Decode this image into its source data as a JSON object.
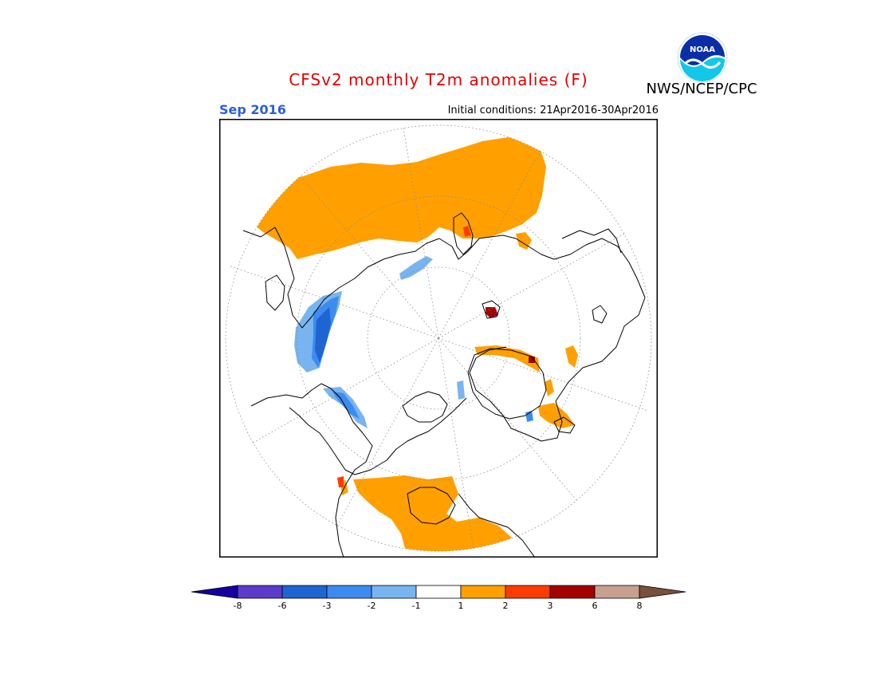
{
  "title": "CFSv2 monthly T2m anomalies (F)",
  "agency": "NWS/NCEP/CPC",
  "logo_text": "NOAA",
  "target_month": "Sep 2016",
  "initial_conditions": "Initial conditions: 21Apr2016-30Apr2016",
  "colors": {
    "warm": "#ffa000",
    "warm2": "#ff3c00",
    "warm3": "#a50000",
    "cool": "#78b4f0",
    "cool2": "#3c8cf0",
    "cool3": "#1e64d2",
    "title": "#e00000",
    "month": "#2b5fd9"
  },
  "legend": {
    "bins": [
      {
        "color": "#1400a0"
      },
      {
        "color": "#5a3cc8"
      },
      {
        "color": "#1e64d2"
      },
      {
        "color": "#3c8cf0"
      },
      {
        "color": "#78b4f0"
      },
      {
        "color": "#ffffff"
      },
      {
        "color": "#ffa000"
      },
      {
        "color": "#ff3c00"
      },
      {
        "color": "#a50000"
      },
      {
        "color": "#c8a090"
      },
      {
        "color": "#78503c"
      }
    ],
    "tick_labels": [
      "-8",
      "-6",
      "-3",
      "-2",
      "-1",
      "1",
      "2",
      "3",
      "6",
      "8"
    ]
  }
}
